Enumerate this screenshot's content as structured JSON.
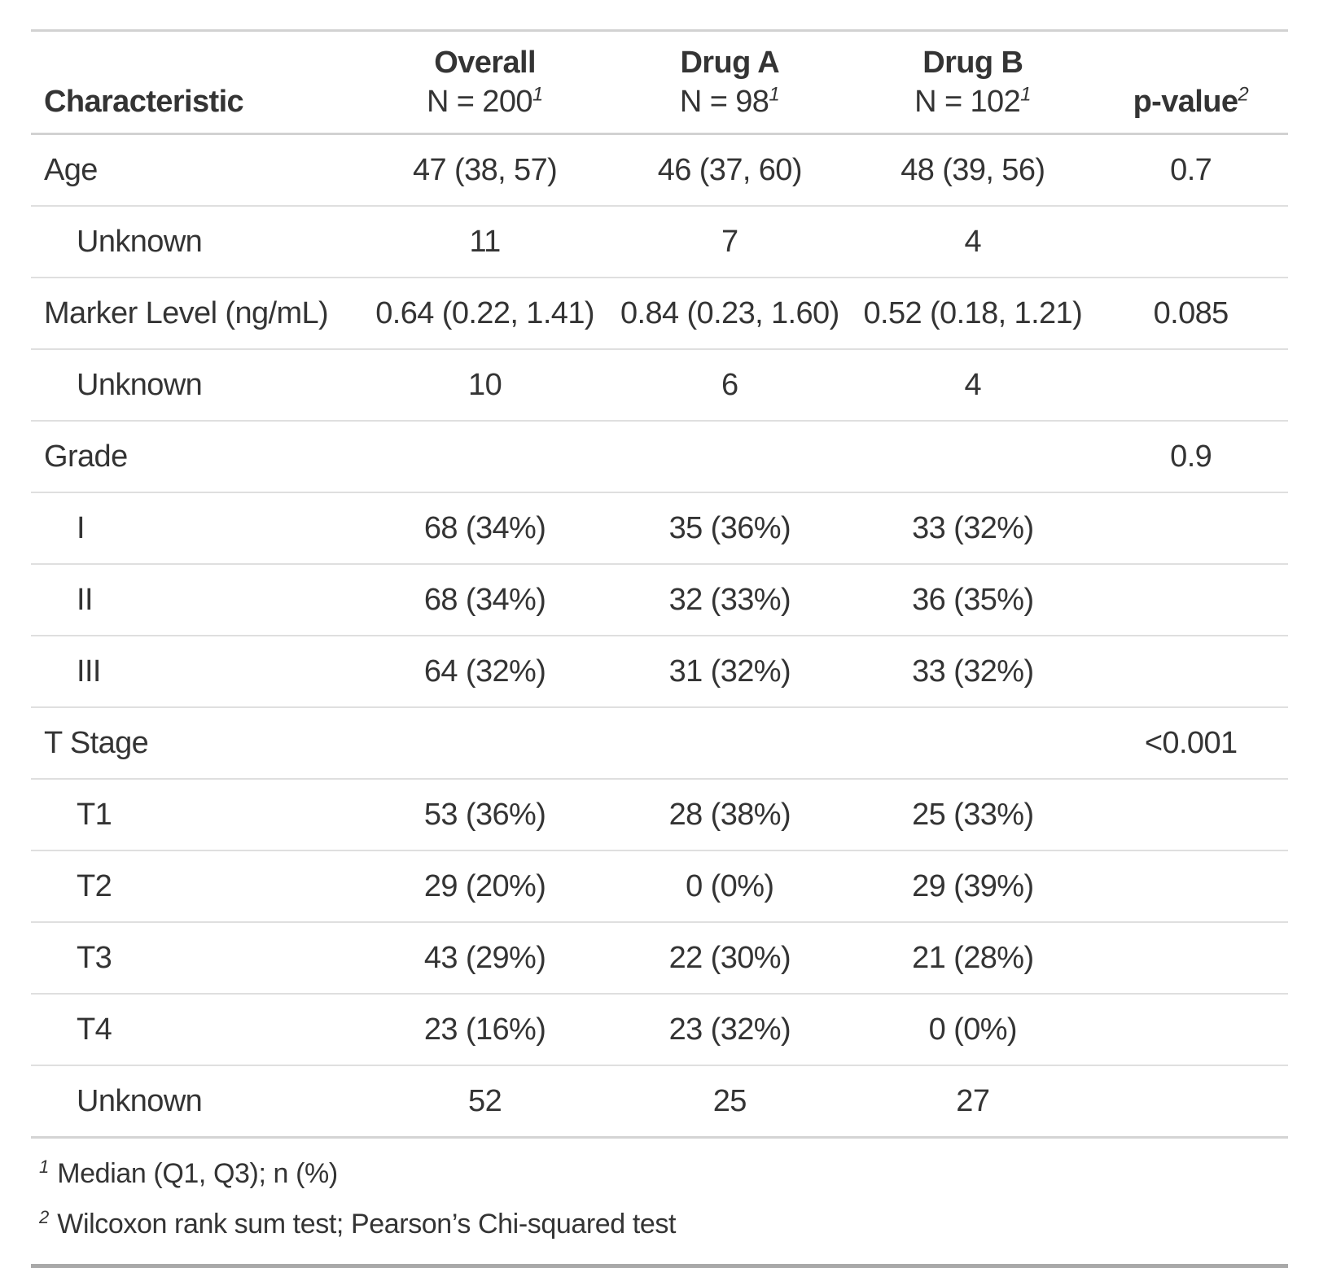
{
  "table": {
    "columns": [
      {
        "label": "Characteristic",
        "sub": "",
        "sup_label": "",
        "sup_sub": "",
        "align": "left"
      },
      {
        "label": "Overall",
        "sub": "N = 200",
        "sup_label": "",
        "sup_sub": "1",
        "align": "center"
      },
      {
        "label": "Drug A",
        "sub": "N = 98",
        "sup_label": "",
        "sup_sub": "1",
        "align": "center"
      },
      {
        "label": "Drug B",
        "sub": "N = 102",
        "sup_label": "",
        "sup_sub": "1",
        "align": "center"
      },
      {
        "label": "p-value",
        "sub": "",
        "sup_label": "2",
        "sup_sub": "",
        "align": "center"
      }
    ],
    "rows": [
      {
        "label": "Age",
        "indent": false,
        "overall": "47 (38, 57)",
        "drug_a": "46 (37, 60)",
        "drug_b": "48 (39, 56)",
        "p": "0.7"
      },
      {
        "label": "Unknown",
        "indent": true,
        "overall": "11",
        "drug_a": "7",
        "drug_b": "4",
        "p": ""
      },
      {
        "label": "Marker Level (ng/mL)",
        "indent": false,
        "overall": "0.64 (0.22, 1.41)",
        "drug_a": "0.84 (0.23, 1.60)",
        "drug_b": "0.52 (0.18, 1.21)",
        "p": "0.085"
      },
      {
        "label": "Unknown",
        "indent": true,
        "overall": "10",
        "drug_a": "6",
        "drug_b": "4",
        "p": ""
      },
      {
        "label": "Grade",
        "indent": false,
        "overall": "",
        "drug_a": "",
        "drug_b": "",
        "p": "0.9"
      },
      {
        "label": "I",
        "indent": true,
        "overall": "68 (34%)",
        "drug_a": "35 (36%)",
        "drug_b": "33 (32%)",
        "p": ""
      },
      {
        "label": "II",
        "indent": true,
        "overall": "68 (34%)",
        "drug_a": "32 (33%)",
        "drug_b": "36 (35%)",
        "p": ""
      },
      {
        "label": "III",
        "indent": true,
        "overall": "64 (32%)",
        "drug_a": "31 (32%)",
        "drug_b": "33 (32%)",
        "p": ""
      },
      {
        "label": "T Stage",
        "indent": false,
        "overall": "",
        "drug_a": "",
        "drug_b": "",
        "p": "<0.001"
      },
      {
        "label": "T1",
        "indent": true,
        "overall": "53 (36%)",
        "drug_a": "28 (38%)",
        "drug_b": "25 (33%)",
        "p": ""
      },
      {
        "label": "T2",
        "indent": true,
        "overall": "29 (20%)",
        "drug_a": "0 (0%)",
        "drug_b": "29 (39%)",
        "p": ""
      },
      {
        "label": "T3",
        "indent": true,
        "overall": "43 (29%)",
        "drug_a": "22 (30%)",
        "drug_b": "21 (28%)",
        "p": ""
      },
      {
        "label": "T4",
        "indent": true,
        "overall": "23 (16%)",
        "drug_a": "23 (32%)",
        "drug_b": "0 (0%)",
        "p": ""
      },
      {
        "label": "Unknown",
        "indent": true,
        "overall": "52",
        "drug_a": "25",
        "drug_b": "27",
        "p": ""
      }
    ],
    "footnotes": [
      {
        "mark": "1",
        "text": "Median (Q1, Q3); n (%)"
      },
      {
        "mark": "2",
        "text": "Wilcoxon rank sum test; Pearson’s Chi-squared test"
      }
    ]
  },
  "colors": {
    "text": "#343434",
    "background": "#ffffff",
    "row_separator": "#dfdfdf",
    "header_border": "#d2d2d2",
    "bottom_border": "#a9a9a9"
  }
}
